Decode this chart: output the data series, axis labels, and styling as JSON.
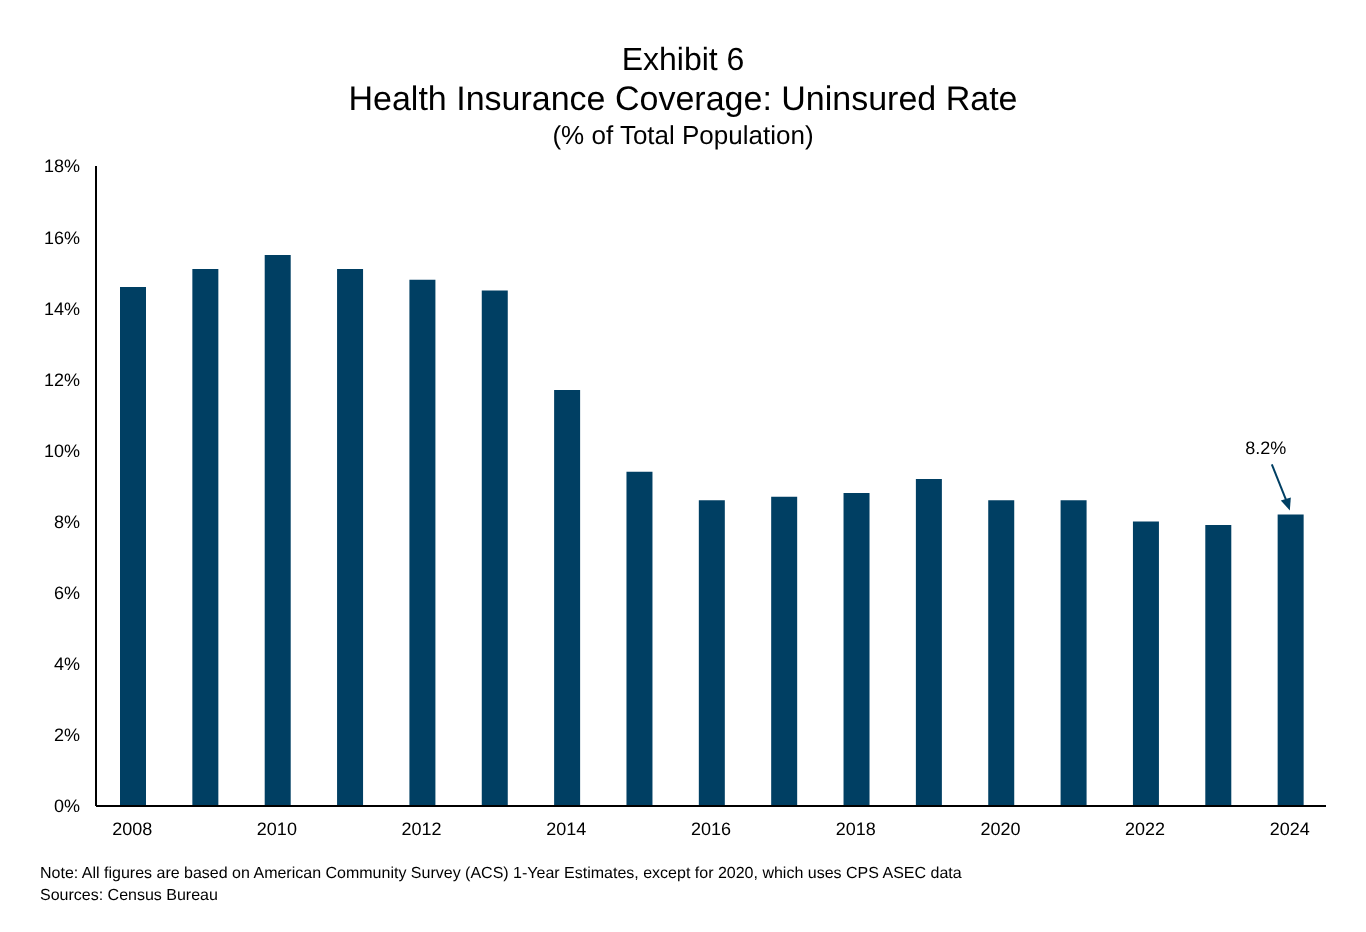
{
  "chart_data": {
    "type": "bar",
    "title": "Exhibit 6",
    "subtitle": "Health Insurance Coverage: Uninsured Rate",
    "ylabel": "(% of Total Population)",
    "categories": [
      "2008",
      null,
      "2010",
      null,
      "2012",
      null,
      "2014",
      null,
      "2016",
      null,
      "2018",
      null,
      "2020",
      null,
      "2022",
      null,
      "2024"
    ],
    "values": [
      14.6,
      15.1,
      15.5,
      15.1,
      14.8,
      14.5,
      11.7,
      9.4,
      8.6,
      8.7,
      8.8,
      9.2,
      8.6,
      8.6,
      8.0,
      7.9,
      8.2
    ],
    "color": "#003f63",
    "ylim": [
      0,
      18
    ],
    "yticks": [
      {
        "value": 0,
        "label": "0%"
      },
      {
        "value": 2,
        "label": "2%"
      },
      {
        "value": 4,
        "label": "4%"
      },
      {
        "value": 6,
        "label": "6%"
      },
      {
        "value": 8,
        "label": "8%"
      },
      {
        "value": 10,
        "label": "10%"
      },
      {
        "value": 12,
        "label": "12%"
      },
      {
        "value": 14,
        "label": "14%"
      },
      {
        "value": 16,
        "label": "16%"
      },
      {
        "value": 18,
        "label": "18%"
      }
    ],
    "grid": false,
    "annotations": [
      {
        "text": "8.2%",
        "x": "2024",
        "y": 8.2
      },
      "Note: All figures are based on American Community Survey (ACS) 1-Year Estimates, except for 2020, which uses CPS ASEC data",
      "Sources: Census Bureau"
    ]
  }
}
